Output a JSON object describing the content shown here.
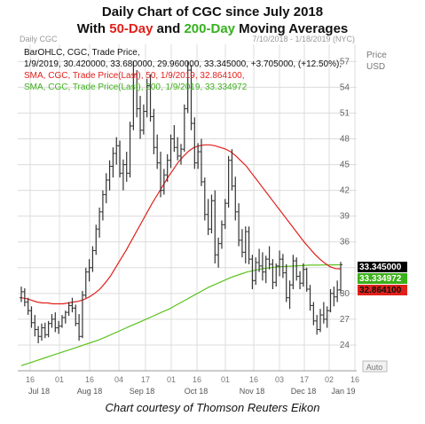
{
  "title": {
    "line1": "Daily Chart of CGC since July 2018",
    "line2_pre": "With ",
    "line2_red": "50-Day",
    "line2_mid": " and ",
    "line2_green": "200-Day",
    "line2_post": " Moving Averages"
  },
  "caption": "Chart courtesy of Thomson Reuters Eikon",
  "header": {
    "symbol": "Daily CGC",
    "range": "7/10/2018 - 1/18/2019 (NYC)",
    "price_label": "Price",
    "currency": "USD",
    "auto": "Auto"
  },
  "legend": {
    "ohlc_line1": "BarOHLC, CGC, Trade Price, 1/9/2019, 30.420000, 33.680000, 29.960000, 33.345000, +3.705000, (+12.50%),",
    "ohlc_line1a": "BarOHLC, CGC, Trade Price,",
    "ohlc_line2": "1/9/2019, 30.420000, 33.680000, 29.960000, 33.345000, +3.705000, (+12.50%),",
    "sma50": "SMA, CGC, Trade Price(Last), 50, 1/9/2019, 32.864100,",
    "sma200": "SMA, CGC, Trade Price(Last), 200, 1/9/2019, 33.334972"
  },
  "colors": {
    "price": "#333333",
    "sma50": "#e0201b",
    "sma200": "#5cc21e",
    "last_tag": "#000000",
    "sma200_tag": "#3cb01a",
    "sma50_tag": "#e0201b",
    "grid": "#dcdcdc"
  },
  "chart_data": {
    "type": "line",
    "ylim": [
      21,
      59
    ],
    "yticks": [
      24,
      27,
      30,
      33,
      36,
      39,
      42,
      45,
      48,
      51,
      54,
      57
    ],
    "ytick_labels": [
      "24",
      "27",
      "30",
      "",
      "36",
      "39",
      "42",
      "45",
      "48",
      "51",
      "54",
      "57"
    ],
    "x_day_labels": [
      "16",
      "01",
      "16",
      "04",
      "17",
      "01",
      "16",
      "01",
      "16",
      "03",
      "17",
      "02",
      "16"
    ],
    "x_month_labels": [
      "Jul 18",
      "Aug 18",
      "Sep 18",
      "Oct 18",
      "Nov 18",
      "Dec 18",
      "Jan 19"
    ],
    "last_values": {
      "price": "33.345000",
      "sma200": "33.334972",
      "sma50": "32.864100"
    },
    "ohlc_last": {
      "date": "1/9/2019",
      "open": 30.42,
      "high": 33.68,
      "low": 29.96,
      "close": 33.345,
      "change": 3.705,
      "change_pct": "12.50%"
    },
    "bars": [
      [
        29.5,
        30.8,
        29,
        30.2
      ],
      [
        30.2,
        30.6,
        28.5,
        29
      ],
      [
        29,
        29.5,
        27.5,
        28
      ],
      [
        28,
        28.5,
        26,
        26.6
      ],
      [
        26.6,
        27.5,
        25,
        25.8
      ],
      [
        25.8,
        26.2,
        24.2,
        25
      ],
      [
        25,
        26.5,
        24.5,
        26
      ],
      [
        26,
        26.6,
        24.8,
        25.2
      ],
      [
        25.2,
        26.8,
        24.9,
        26.5
      ],
      [
        26.5,
        27.6,
        26,
        27
      ],
      [
        27,
        27.8,
        25.5,
        26
      ],
      [
        26,
        26.8,
        25.3,
        26.2
      ],
      [
        26.2,
        27.5,
        26,
        27.2
      ],
      [
        27.2,
        28,
        26.5,
        27.8
      ],
      [
        27.8,
        29,
        27.4,
        28.6
      ],
      [
        28.6,
        29.5,
        27.8,
        28.3
      ],
      [
        28.3,
        28.7,
        26.2,
        26.5
      ],
      [
        26.5,
        27.6,
        24.5,
        25
      ],
      [
        25,
        30.3,
        24.8,
        29.8
      ],
      [
        29.8,
        33,
        29.5,
        32.5
      ],
      [
        32.5,
        34,
        31.4,
        33
      ],
      [
        33,
        35.5,
        32.5,
        35
      ],
      [
        35,
        38,
        34.5,
        37.5
      ],
      [
        37.5,
        40,
        36.5,
        39.5
      ],
      [
        39.5,
        42,
        38.5,
        41.5
      ],
      [
        41.5,
        44,
        40.5,
        43.2
      ],
      [
        43.2,
        45.5,
        42,
        44.8
      ],
      [
        44.8,
        47,
        43.5,
        46.3
      ],
      [
        46.3,
        48.2,
        45,
        47.2
      ],
      [
        47.2,
        47.8,
        43.5,
        44
      ],
      [
        44,
        45.6,
        42,
        45
      ],
      [
        45,
        46.5,
        43,
        44
      ],
      [
        44,
        50,
        43.5,
        49.5
      ],
      [
        49.5,
        57,
        49,
        55.5
      ],
      [
        55.5,
        56,
        50.5,
        51.5
      ],
      [
        51.5,
        53,
        48,
        49
      ],
      [
        49,
        52,
        48.5,
        51.2
      ],
      [
        51.2,
        55,
        50.5,
        54.2
      ],
      [
        54.2,
        55.5,
        50,
        50.6
      ],
      [
        50.6,
        51.5,
        46.2,
        47
      ],
      [
        47,
        48.5,
        44.5,
        45.2
      ],
      [
        45.2,
        46.5,
        41.2,
        42
      ],
      [
        42,
        44.5,
        41.5,
        43.8
      ],
      [
        43.8,
        46.2,
        43,
        45.5
      ],
      [
        45.5,
        48.5,
        44.6,
        48
      ],
      [
        48,
        49.6,
        46.5,
        47
      ],
      [
        47,
        48.2,
        45.5,
        46
      ],
      [
        46,
        47.4,
        45,
        46.8
      ],
      [
        46.8,
        52,
        46.5,
        51.5
      ],
      [
        51.5,
        57,
        51,
        56
      ],
      [
        56,
        56.6,
        49,
        49.8
      ],
      [
        49.8,
        50.5,
        44.5,
        45.2
      ],
      [
        45.2,
        47.5,
        44.5,
        46.5
      ],
      [
        46.5,
        48,
        42.5,
        43
      ],
      [
        43,
        43.5,
        38.5,
        39.2
      ],
      [
        39.2,
        41,
        36.8,
        37.5
      ],
      [
        37.5,
        41.5,
        37,
        40.8
      ],
      [
        40.8,
        42,
        33.5,
        34.5
      ],
      [
        34.5,
        36.5,
        33,
        35.8
      ],
      [
        35.8,
        38.5,
        35.2,
        38
      ],
      [
        38,
        41,
        37.5,
        40.5
      ],
      [
        40.5,
        46,
        40,
        45.5
      ],
      [
        45.5,
        46.8,
        42,
        42.5
      ],
      [
        42.5,
        43.6,
        38.5,
        39.5
      ],
      [
        39.5,
        40.5,
        35.5,
        36.2
      ],
      [
        36.2,
        37.5,
        34.2,
        34.8
      ],
      [
        34.8,
        37.8,
        33.5,
        37.2
      ],
      [
        37.2,
        37.8,
        33.4,
        34
      ],
      [
        34,
        34.5,
        30.5,
        31.5
      ],
      [
        31.5,
        34.2,
        31,
        33.6
      ],
      [
        33.6,
        35.2,
        32.5,
        33.2
      ],
      [
        33.2,
        34.8,
        31.5,
        32.5
      ],
      [
        32.5,
        34.4,
        31.2,
        34
      ],
      [
        34,
        35.5,
        32.8,
        33.4
      ],
      [
        33.4,
        34,
        30.5,
        31.3
      ],
      [
        31.3,
        33.5,
        30.8,
        33.2
      ],
      [
        33.2,
        35,
        32,
        34
      ],
      [
        34,
        34.6,
        31.8,
        32.4
      ],
      [
        32.4,
        33.4,
        29,
        29.5
      ],
      [
        29.5,
        31.5,
        28.2,
        31
      ],
      [
        31,
        34.5,
        30.5,
        33.8
      ],
      [
        33.8,
        34.2,
        31.5,
        32
      ],
      [
        32,
        32.6,
        30.5,
        31.2
      ],
      [
        31.2,
        33.5,
        30.8,
        32.8
      ],
      [
        32.8,
        33,
        30.2,
        30.5
      ],
      [
        30.5,
        31,
        28,
        28.6
      ],
      [
        28.6,
        29,
        26.3,
        26.8
      ],
      [
        26.8,
        27.5,
        25.2,
        25.8
      ],
      [
        25.8,
        28.2,
        25.5,
        27.5
      ],
      [
        27.5,
        29,
        26.5,
        27
      ],
      [
        27,
        28.5,
        26,
        28
      ],
      [
        28,
        30.5,
        27.8,
        30
      ],
      [
        30,
        30.8,
        28.5,
        29.6
      ],
      [
        29.6,
        31.5,
        29,
        30.4
      ],
      [
        30.42,
        33.68,
        29.96,
        33.345
      ]
    ],
    "sma50": [
      29.5,
      29.4,
      29.2,
      29.0,
      28.9,
      28.9,
      28.8,
      28.8,
      28.8,
      28.9,
      29.0,
      29.1,
      29.3,
      29.6,
      30.0,
      30.5,
      31.2,
      32.0,
      33.0,
      34.0,
      35.0,
      36.1,
      37.2,
      38.3,
      39.4,
      40.5,
      41.5,
      42.5,
      43.5,
      44.4,
      45.3,
      46.0,
      46.6,
      47.0,
      47.2,
      47.3,
      47.3,
      47.2,
      47.0,
      46.8,
      46.5,
      46.0,
      45.4,
      44.8,
      44.0,
      43.2,
      42.4,
      41.6,
      40.8,
      40.0,
      39.2,
      38.4,
      37.6,
      36.8,
      36.0,
      35.3,
      34.6,
      34.0,
      33.5,
      33.1,
      32.9,
      32.864
    ],
    "sma200": [
      21.6,
      21.9,
      22.2,
      22.5,
      22.8,
      23.1,
      23.4,
      23.7,
      24.0,
      24.3,
      24.6,
      25.0,
      25.4,
      25.8,
      26.2,
      26.6,
      27.0,
      27.4,
      27.8,
      28.2,
      28.7,
      29.2,
      29.7,
      30.2,
      30.7,
      31.1,
      31.5,
      31.9,
      32.2,
      32.5,
      32.7,
      32.9,
      33.0,
      33.1,
      33.15,
      33.2,
      33.25,
      33.3,
      33.3,
      33.32,
      33.33,
      33.335
    ]
  }
}
